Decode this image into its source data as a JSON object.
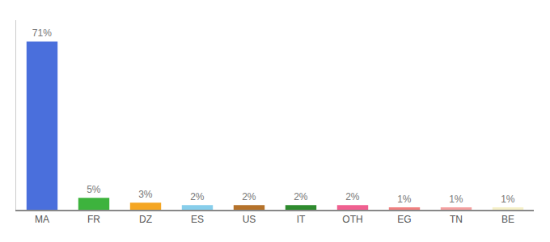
{
  "chart_data": {
    "type": "bar",
    "categories": [
      "MA",
      "FR",
      "DZ",
      "ES",
      "US",
      "IT",
      "OTH",
      "EG",
      "TN",
      "BE"
    ],
    "values": [
      71,
      5,
      3,
      2,
      2,
      2,
      2,
      1,
      1,
      1
    ],
    "value_labels": [
      "71%",
      "5%",
      "3%",
      "2%",
      "2%",
      "2%",
      "2%",
      "1%",
      "1%",
      "1%"
    ],
    "colors": [
      "#4a6fdc",
      "#3db33d",
      "#f5a623",
      "#87ceeb",
      "#b5722a",
      "#2e8b2e",
      "#f06090",
      "#f08080",
      "#f4a0a0",
      "#f5f0c8"
    ],
    "ylim": [
      0,
      80
    ],
    "data_labels": true,
    "tick_labels": "x",
    "grid": false
  }
}
